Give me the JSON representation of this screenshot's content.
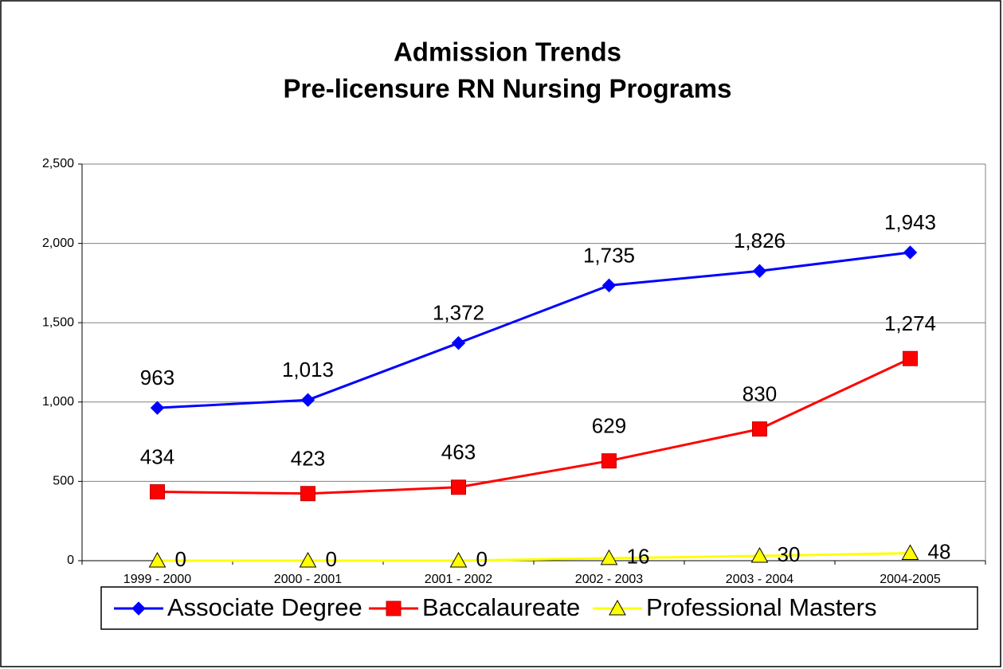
{
  "chart_data": {
    "type": "line",
    "title": "Admission Trends",
    "subtitle": "Pre-licensure RN Nursing Programs",
    "categories": [
      "1999 - 2000",
      "2000 - 2001",
      "2001 - 2002",
      "2002 - 2003",
      "2003 - 2004",
      "2004-2005"
    ],
    "series": [
      {
        "name": "Associate Degree",
        "color": "#0000ff",
        "marker": "diamond",
        "values": [
          963,
          1013,
          1372,
          1735,
          1826,
          1943
        ],
        "value_labels": [
          "963",
          "1,013",
          "1,372",
          "1,735",
          "1,826",
          "1,943"
        ]
      },
      {
        "name": "Baccalaureate",
        "color": "#ff0000",
        "marker": "square",
        "values": [
          434,
          423,
          463,
          629,
          830,
          1274
        ],
        "value_labels": [
          "434",
          "423",
          "463",
          "629",
          "830",
          "1,274"
        ]
      },
      {
        "name": "Professional Masters",
        "color": "#ffff00",
        "marker": "triangle",
        "values": [
          0,
          0,
          0,
          16,
          30,
          48
        ],
        "value_labels": [
          "0",
          "0",
          "0",
          "16",
          "30",
          "48"
        ]
      }
    ],
    "ylim": [
      0,
      2500
    ],
    "yticks": [
      0,
      500,
      {
        "value": 1000,
        "label": "1,000"
      },
      {
        "value": 1500,
        "label": "1,500"
      },
      {
        "value": 2000,
        "label": "2,000"
      },
      {
        "value": 2500,
        "label": "2,500"
      }
    ],
    "grid": true,
    "legend": "bottom"
  }
}
